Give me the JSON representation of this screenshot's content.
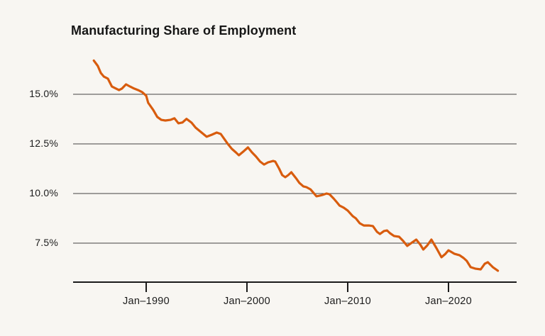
{
  "page": {
    "background_color": "#f8f6f2",
    "accent_color": "#d85c0e"
  },
  "chart_data": {
    "type": "line",
    "title": "Manufacturing Share of Employment",
    "xlabel": "",
    "ylabel": "",
    "legend": "none",
    "grid": "horizontal",
    "axis_color": "#1a1a1a",
    "gridline_color": "#434343",
    "x_axis": {
      "tick_labels": [
        "Jan–1990",
        "Jan–2000",
        "Jan–2010",
        "Jan–2020"
      ],
      "tick_values": [
        1990,
        2000,
        2010,
        2020
      ],
      "range": [
        1984.5,
        2025.3
      ]
    },
    "y_axis": {
      "tick_labels": [
        "15.0%",
        "12.5%",
        "10.0%",
        "7.5%"
      ],
      "tick_values": [
        15.0,
        12.5,
        10.0,
        7.5
      ],
      "unit": "%",
      "visible_range": [
        5.9,
        16.9
      ]
    },
    "series": [
      {
        "name": "manufacturing-share-of-employment",
        "color": "#d85c0e",
        "points": [
          [
            1984.8,
            16.7
          ],
          [
            1985.2,
            16.43
          ],
          [
            1985.5,
            16.07
          ],
          [
            1985.8,
            15.89
          ],
          [
            1986.2,
            15.79
          ],
          [
            1986.6,
            15.39
          ],
          [
            1987.0,
            15.29
          ],
          [
            1987.3,
            15.21
          ],
          [
            1987.6,
            15.29
          ],
          [
            1988.0,
            15.5
          ],
          [
            1988.4,
            15.39
          ],
          [
            1988.8,
            15.29
          ],
          [
            1989.2,
            15.21
          ],
          [
            1989.6,
            15.11
          ],
          [
            1990.0,
            14.93
          ],
          [
            1990.2,
            14.57
          ],
          [
            1990.7,
            14.21
          ],
          [
            1991.1,
            13.86
          ],
          [
            1991.5,
            13.71
          ],
          [
            1991.9,
            13.68
          ],
          [
            1992.4,
            13.71
          ],
          [
            1992.8,
            13.79
          ],
          [
            1993.2,
            13.54
          ],
          [
            1993.6,
            13.58
          ],
          [
            1994.0,
            13.76
          ],
          [
            1994.5,
            13.57
          ],
          [
            1994.9,
            13.32
          ],
          [
            1995.4,
            13.11
          ],
          [
            1996.0,
            12.86
          ],
          [
            1996.5,
            12.96
          ],
          [
            1997.0,
            13.07
          ],
          [
            1997.4,
            13.0
          ],
          [
            1997.8,
            12.71
          ],
          [
            1998.1,
            12.5
          ],
          [
            1998.5,
            12.25
          ],
          [
            1998.9,
            12.07
          ],
          [
            1999.2,
            11.93
          ],
          [
            1999.7,
            12.14
          ],
          [
            2000.1,
            12.32
          ],
          [
            2000.5,
            12.07
          ],
          [
            2000.9,
            11.86
          ],
          [
            2001.3,
            11.61
          ],
          [
            2001.7,
            11.46
          ],
          [
            2002.1,
            11.57
          ],
          [
            2002.6,
            11.64
          ],
          [
            2002.8,
            11.61
          ],
          [
            2003.2,
            11.25
          ],
          [
            2003.5,
            10.93
          ],
          [
            2003.8,
            10.82
          ],
          [
            2004.1,
            10.93
          ],
          [
            2004.4,
            11.07
          ],
          [
            2004.9,
            10.75
          ],
          [
            2005.2,
            10.54
          ],
          [
            2005.6,
            10.36
          ],
          [
            2005.9,
            10.32
          ],
          [
            2006.3,
            10.21
          ],
          [
            2006.6,
            10.04
          ],
          [
            2006.9,
            9.86
          ],
          [
            2007.2,
            9.89
          ],
          [
            2007.5,
            9.93
          ],
          [
            2007.9,
            10.0
          ],
          [
            2008.2,
            9.96
          ],
          [
            2008.6,
            9.75
          ],
          [
            2008.9,
            9.57
          ],
          [
            2009.2,
            9.39
          ],
          [
            2009.6,
            9.29
          ],
          [
            2010.0,
            9.14
          ],
          [
            2010.5,
            8.86
          ],
          [
            2010.8,
            8.75
          ],
          [
            2011.2,
            8.5
          ],
          [
            2011.6,
            8.39
          ],
          [
            2012.1,
            8.39
          ],
          [
            2012.5,
            8.36
          ],
          [
            2012.9,
            8.07
          ],
          [
            2013.2,
            7.96
          ],
          [
            2013.6,
            8.11
          ],
          [
            2013.9,
            8.14
          ],
          [
            2014.2,
            8.0
          ],
          [
            2014.6,
            7.86
          ],
          [
            2015.1,
            7.82
          ],
          [
            2015.5,
            7.61
          ],
          [
            2015.9,
            7.36
          ],
          [
            2016.4,
            7.54
          ],
          [
            2016.8,
            7.68
          ],
          [
            2017.2,
            7.43
          ],
          [
            2017.5,
            7.18
          ],
          [
            2017.9,
            7.39
          ],
          [
            2018.3,
            7.68
          ],
          [
            2018.8,
            7.25
          ],
          [
            2019.3,
            6.79
          ],
          [
            2019.7,
            6.96
          ],
          [
            2020.0,
            7.14
          ],
          [
            2020.6,
            6.96
          ],
          [
            2021.1,
            6.89
          ],
          [
            2021.5,
            6.75
          ],
          [
            2021.8,
            6.61
          ],
          [
            2022.2,
            6.29
          ],
          [
            2022.7,
            6.21
          ],
          [
            2023.2,
            6.18
          ],
          [
            2023.6,
            6.46
          ],
          [
            2023.9,
            6.54
          ],
          [
            2024.4,
            6.29
          ],
          [
            2024.9,
            6.11
          ]
        ]
      }
    ]
  }
}
